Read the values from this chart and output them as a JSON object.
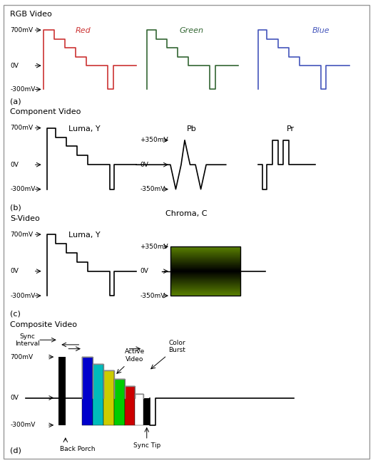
{
  "title_rgb": "RGB Video",
  "title_comp": "Component Video",
  "title_svideo": "S-Video",
  "title_composite": "Composite Video",
  "label_a": "(a)",
  "label_b": "(b)",
  "label_c": "(c)",
  "label_d": "(d)",
  "bg_color": "#ffffff",
  "border_color": "#999999",
  "red_color": "#cc3333",
  "green_color": "#336633",
  "blue_color": "#4455bb",
  "staircase_x": [
    1.1,
    1.1,
    1.35,
    1.35,
    1.65,
    1.65,
    1.95,
    1.95,
    2.25,
    2.25,
    2.55,
    2.55,
    2.85,
    2.85,
    2.97,
    2.97,
    3.15,
    3.15,
    3.6
  ],
  "staircase_y": [
    -0.3,
    0.7,
    0.7,
    0.55,
    0.55,
    0.4,
    0.4,
    0.25,
    0.25,
    0.1,
    0.1,
    0.1,
    0.1,
    -0.3,
    -0.3,
    0.1,
    0.1,
    0.1,
    0.1
  ],
  "composite_bar_colors": [
    "#0000cc",
    "#00bbbb",
    "#cccc00",
    "#00cc00",
    "#cc0000",
    "#ffffff"
  ],
  "chroma_green": [
    0.35,
    0.5,
    0.0
  ]
}
